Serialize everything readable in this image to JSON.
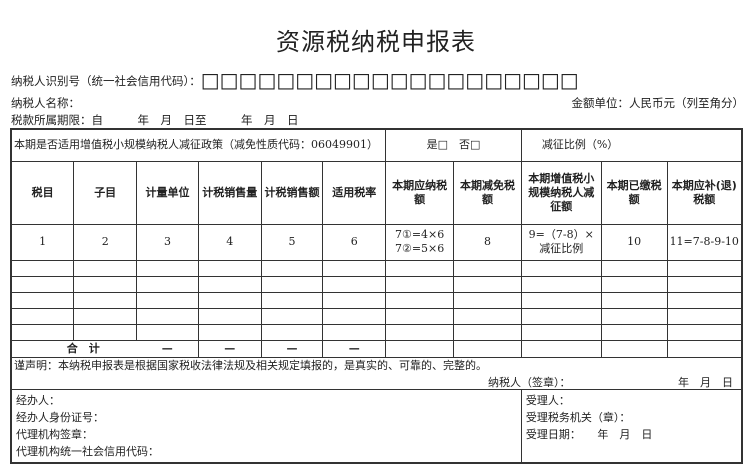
{
  "title": "资源税纳税申报表",
  "taxpayer_id_label": "纳税人识别号（统一社会信用代码）：",
  "taxpayer_id_boxes": "□□□□□□□□□□□□□□□□□□□□",
  "taxpayer_name_label": "纳税人名称：",
  "amount_unit": "金额单位：人民币元（列至角分）",
  "period_label": "税款所属期限：自　　　年　月　日至　　　年　月　日",
  "policy_question": "本期是否适用增值税小规模纳税人减征政策（减免性质代码：06049901）",
  "policy_options": "是□　否□",
  "reduction_ratio_label": "减征比例（%）",
  "headers": [
    "税目",
    "子目",
    "计量单位",
    "计税销售量",
    "计税销售额",
    "适用税率",
    "本期应纳税额",
    "本期减免税额",
    "本期增值税小规模纳税人减征额",
    "本期已缴税额",
    "本期应补(退)税额"
  ],
  "row_numbers": [
    "1",
    "2",
    "3",
    "4",
    "5",
    "6",
    "7①=4×6\n7②=5×6",
    "8",
    "9=（7-8）×减征比例",
    "10",
    "11=7-8-9-10"
  ],
  "total_label": "合　计",
  "dash": "—",
  "declaration": "谨声明：本纳税申报表是根据国家税收法律法规及相关规定填报的，是真实的、可靠的、完整的。",
  "taxpayer_sign": "纳税人（签章）：",
  "date_ymd": "年　月　日",
  "agent": "经办人：",
  "agent_id": "经办人身份证号：",
  "agency_seal": "代理机构签章：",
  "agency_code": "代理机构统一社会信用代码：",
  "receiver": "受理人：",
  "receiving_office": "受理税务机关（章）：",
  "receive_date": "受理日期：　　年　月　日"
}
